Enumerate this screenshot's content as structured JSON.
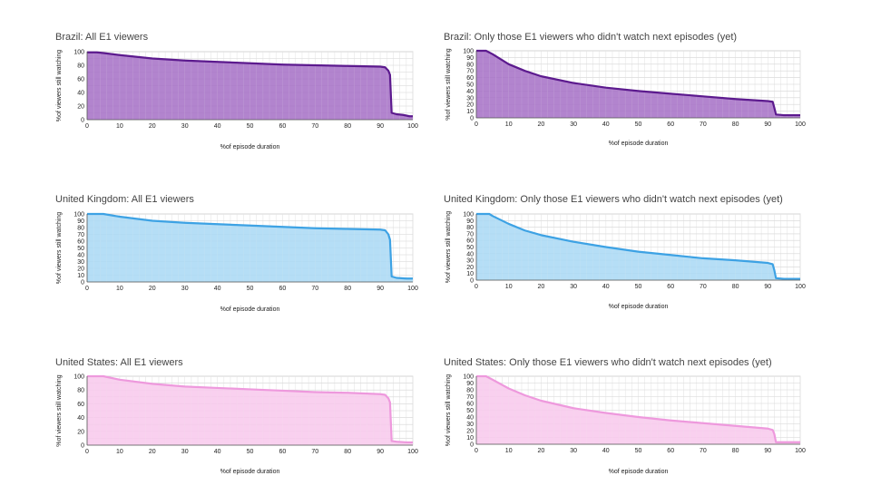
{
  "chart_data": [
    {
      "type": "area",
      "title": "Brazil: All E1 viewers",
      "xlabel": "%of episode duration",
      "ylabel": "%of viewers still watching",
      "xlim": [
        0,
        100
      ],
      "ylim": [
        0,
        100
      ],
      "xticks": [
        0,
        10,
        20,
        30,
        40,
        50,
        60,
        70,
        80,
        90,
        100
      ],
      "yticks": [
        0,
        20,
        40,
        60,
        80,
        100
      ],
      "grid": true,
      "color": "#5c1a8e",
      "fill": "#a46fc6",
      "x": [
        0,
        3,
        5,
        10,
        20,
        30,
        40,
        50,
        60,
        70,
        80,
        90,
        91.5,
        92.5,
        93,
        93.5,
        95,
        97,
        99,
        100
      ],
      "y": [
        99,
        99,
        98,
        95,
        90,
        87,
        85,
        83,
        81,
        80,
        79,
        78,
        77,
        72,
        66,
        10,
        8,
        7,
        5,
        5
      ]
    },
    {
      "type": "area",
      "title": "Brazil: Only those E1 viewers who didn't watch next episodes (yet)",
      "xlabel": "%of episode duration",
      "ylabel": "%of viewers still watching",
      "xlim": [
        0,
        100
      ],
      "ylim": [
        0,
        100
      ],
      "xticks": [
        0,
        10,
        20,
        30,
        40,
        50,
        60,
        70,
        80,
        90,
        100
      ],
      "yticks": [
        0,
        10,
        20,
        30,
        40,
        50,
        60,
        70,
        80,
        90,
        100
      ],
      "grid": true,
      "color": "#5c1a8e",
      "fill": "#a46fc6",
      "x": [
        0,
        3,
        5,
        10,
        15,
        20,
        30,
        40,
        50,
        60,
        70,
        80,
        90,
        91.5,
        92,
        92.5,
        95,
        100
      ],
      "y": [
        100,
        100,
        95,
        80,
        70,
        62,
        52,
        45,
        40,
        36,
        32,
        28,
        25,
        24,
        15,
        5,
        4,
        4
      ]
    },
    {
      "type": "area",
      "title": "United Kingdom: All E1 viewers",
      "xlabel": "%of episode duration",
      "ylabel": "%of viewers still watching",
      "xlim": [
        0,
        100
      ],
      "ylim": [
        0,
        100
      ],
      "xticks": [
        0,
        10,
        20,
        30,
        40,
        50,
        60,
        70,
        80,
        90,
        100
      ],
      "yticks": [
        0,
        10,
        20,
        30,
        40,
        50,
        60,
        70,
        80,
        90,
        100
      ],
      "grid": true,
      "color": "#3da2e4",
      "fill": "#a8d8f4",
      "x": [
        0,
        5,
        10,
        20,
        30,
        40,
        50,
        60,
        70,
        80,
        90,
        91.5,
        92.5,
        93,
        93.5,
        95,
        98,
        100
      ],
      "y": [
        100,
        100,
        96,
        90,
        87,
        85,
        83,
        81,
        79,
        78,
        77,
        76,
        70,
        62,
        8,
        6,
        5,
        5
      ]
    },
    {
      "type": "area",
      "title": "United Kingdom: Only those E1 viewers who didn't watch next episodes (yet)",
      "xlabel": "%of episode duration",
      "ylabel": "%of viewers still watching",
      "xlim": [
        0,
        100
      ],
      "ylim": [
        0,
        100
      ],
      "xticks": [
        0,
        10,
        20,
        30,
        40,
        50,
        60,
        70,
        80,
        90,
        100
      ],
      "yticks": [
        0,
        10,
        20,
        30,
        40,
        50,
        60,
        70,
        80,
        90,
        100
      ],
      "grid": true,
      "color": "#3da2e4",
      "fill": "#a8d8f4",
      "x": [
        0,
        4,
        5,
        10,
        15,
        20,
        30,
        40,
        50,
        60,
        70,
        80,
        90,
        91.5,
        92,
        92.5,
        95,
        100
      ],
      "y": [
        100,
        100,
        97,
        85,
        75,
        68,
        58,
        50,
        43,
        38,
        33,
        30,
        26,
        24,
        15,
        3,
        2,
        2
      ]
    },
    {
      "type": "area",
      "title": "United States: All E1 viewers",
      "xlabel": "%of episode duration",
      "ylabel": "%of viewers still watching",
      "xlim": [
        0,
        100
      ],
      "ylim": [
        0,
        100
      ],
      "xticks": [
        0,
        10,
        20,
        30,
        40,
        50,
        60,
        70,
        80,
        90,
        100
      ],
      "yticks": [
        0,
        20,
        40,
        60,
        80,
        100
      ],
      "grid": true,
      "color": "#ee99dd",
      "fill": "#f8c8ec",
      "x": [
        0,
        5,
        10,
        20,
        30,
        40,
        50,
        60,
        70,
        80,
        90,
        91.5,
        92.5,
        93,
        93.5,
        95,
        98,
        100
      ],
      "y": [
        100,
        100,
        95,
        89,
        85,
        83,
        81,
        79,
        77,
        76,
        74,
        73,
        68,
        62,
        6,
        5,
        4,
        4
      ]
    },
    {
      "type": "area",
      "title": "United States: Only those E1 viewers who didn't watch next episodes (yet)",
      "xlabel": "%of episode duration",
      "ylabel": "%of viewers still watching",
      "xlim": [
        0,
        100
      ],
      "ylim": [
        0,
        100
      ],
      "xticks": [
        0,
        10,
        20,
        30,
        40,
        50,
        60,
        70,
        80,
        90,
        100
      ],
      "yticks": [
        0,
        10,
        20,
        30,
        40,
        50,
        60,
        70,
        80,
        90,
        100
      ],
      "grid": true,
      "color": "#ee99dd",
      "fill": "#f8c8ec",
      "x": [
        0,
        3,
        5,
        10,
        15,
        20,
        30,
        40,
        50,
        60,
        70,
        80,
        90,
        91.5,
        92,
        92.5,
        95,
        100
      ],
      "y": [
        100,
        100,
        95,
        82,
        72,
        64,
        53,
        46,
        40,
        35,
        31,
        27,
        23,
        21,
        15,
        3,
        3,
        3
      ]
    }
  ]
}
